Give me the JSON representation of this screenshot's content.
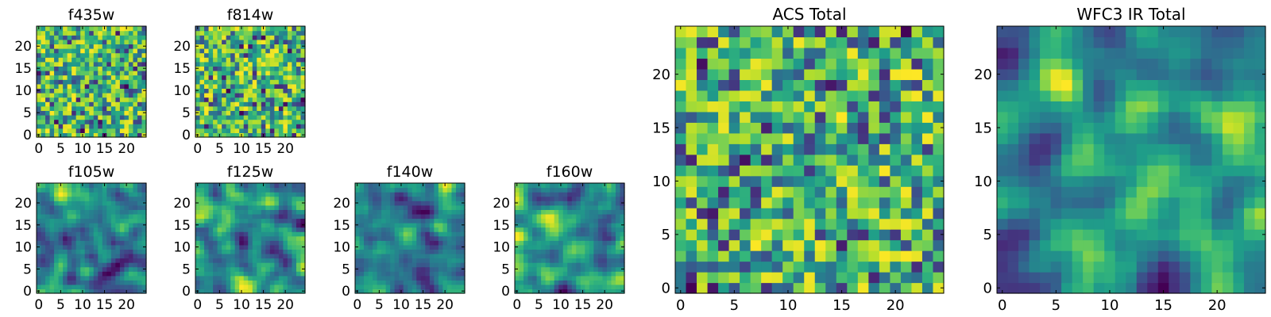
{
  "chart_data": [
    {
      "type": "heatmap",
      "title": "f435w",
      "grid_size": 25,
      "colormap": "viridis",
      "xticks": [
        "0",
        "5",
        "10",
        "15",
        "20"
      ],
      "yticks": [
        "0",
        "5",
        "10",
        "15",
        "20"
      ],
      "xlim": [
        -0.5,
        24.5
      ],
      "ylim": [
        -0.5,
        24.5
      ],
      "grid": false,
      "texture": "noise"
    },
    {
      "type": "heatmap",
      "title": "f814w",
      "grid_size": 25,
      "colormap": "viridis",
      "xticks": [
        "0",
        "5",
        "10",
        "15",
        "20"
      ],
      "yticks": [
        "0",
        "5",
        "10",
        "15",
        "20"
      ],
      "xlim": [
        -0.5,
        24.5
      ],
      "ylim": [
        -0.5,
        24.5
      ],
      "grid": false,
      "texture": "noise"
    },
    {
      "type": "heatmap",
      "title": "f105w",
      "grid_size": 25,
      "colormap": "viridis",
      "xticks": [
        "0",
        "5",
        "10",
        "15",
        "20"
      ],
      "yticks": [
        "0",
        "5",
        "10",
        "15",
        "20"
      ],
      "xlim": [
        -0.5,
        24.5
      ],
      "ylim": [
        -0.5,
        24.5
      ],
      "grid": false,
      "texture": "smooth"
    },
    {
      "type": "heatmap",
      "title": "f125w",
      "grid_size": 25,
      "colormap": "viridis",
      "xticks": [
        "0",
        "5",
        "10",
        "15",
        "20"
      ],
      "yticks": [
        "0",
        "5",
        "10",
        "15",
        "20"
      ],
      "xlim": [
        -0.5,
        24.5
      ],
      "ylim": [
        -0.5,
        24.5
      ],
      "grid": false,
      "texture": "smooth"
    },
    {
      "type": "heatmap",
      "title": "f140w",
      "grid_size": 25,
      "colormap": "viridis",
      "xticks": [
        "0",
        "5",
        "10",
        "15",
        "20"
      ],
      "yticks": [
        "0",
        "5",
        "10",
        "15",
        "20"
      ],
      "xlim": [
        -0.5,
        24.5
      ],
      "ylim": [
        -0.5,
        24.5
      ],
      "grid": false,
      "texture": "smooth"
    },
    {
      "type": "heatmap",
      "title": "f160w",
      "grid_size": 25,
      "colormap": "viridis",
      "xticks": [
        "0",
        "5",
        "10",
        "15",
        "20"
      ],
      "yticks": [
        "0",
        "5",
        "10",
        "15",
        "20"
      ],
      "xlim": [
        -0.5,
        24.5
      ],
      "ylim": [
        -0.5,
        24.5
      ],
      "grid": false,
      "texture": "smooth"
    },
    {
      "type": "heatmap",
      "title": "ACS Total",
      "grid_size": 25,
      "colormap": "viridis",
      "xticks": [
        "0",
        "5",
        "10",
        "15",
        "20"
      ],
      "yticks": [
        "0",
        "5",
        "10",
        "15",
        "20"
      ],
      "xlim": [
        -0.5,
        24.5
      ],
      "ylim": [
        -0.5,
        24.5
      ],
      "grid": false,
      "texture": "noise"
    },
    {
      "type": "heatmap",
      "title": "WFC3 IR Total",
      "grid_size": 25,
      "colormap": "viridis",
      "xticks": [
        "0",
        "5",
        "10",
        "15",
        "20"
      ],
      "yticks": [
        "0",
        "5",
        "10",
        "15",
        "20"
      ],
      "xlim": [
        -0.5,
        24.5
      ],
      "ylim": [
        -0.5,
        24.5
      ],
      "grid": false,
      "texture": "smooth"
    }
  ]
}
